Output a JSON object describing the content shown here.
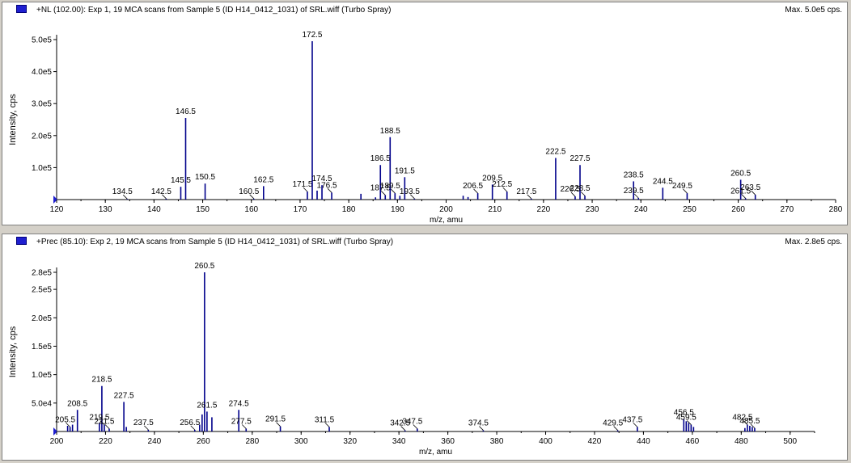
{
  "chart_data": [
    {
      "type": "bar",
      "title": "+NL (102.00): Exp 1, 19 MCA scans from Sample 5 (ID H14_0412_1031) of SRL.wiff (Turbo Spray)",
      "max_label": "Max. 5.0e5 cps.",
      "xlabel": "m/z, amu",
      "ylabel": "Intensity, cps",
      "xlim": [
        120,
        280
      ],
      "ylim": [
        0,
        500000
      ],
      "x_ticks": [
        120,
        130,
        140,
        150,
        160,
        170,
        180,
        190,
        200,
        210,
        220,
        230,
        240,
        250,
        260,
        270,
        280
      ],
      "y_ticks": [
        {
          "value": 100000,
          "label": "1.0e5"
        },
        {
          "value": 200000,
          "label": "2.0e5"
        },
        {
          "value": 300000,
          "label": "3.0e5"
        },
        {
          "value": 400000,
          "label": "4.0e5"
        },
        {
          "value": 500000,
          "label": "5.0e5"
        }
      ],
      "peaks": [
        {
          "x": 134.5,
          "y": 2000,
          "label": "134.5"
        },
        {
          "x": 142.5,
          "y": 3000,
          "label": "142.5"
        },
        {
          "x": 145.5,
          "y": 40000,
          "label": "145.5"
        },
        {
          "x": 146.5,
          "y": 255000,
          "label": "146.5"
        },
        {
          "x": 150.5,
          "y": 50000,
          "label": "150.5"
        },
        {
          "x": 160.5,
          "y": 3000,
          "label": "160.5"
        },
        {
          "x": 162.5,
          "y": 42000,
          "label": "162.5"
        },
        {
          "x": 171.5,
          "y": 25000,
          "label": "171.5"
        },
        {
          "x": 172.5,
          "y": 495000,
          "label": "172.5"
        },
        {
          "x": 173.5,
          "y": 28000,
          "label": ""
        },
        {
          "x": 174.5,
          "y": 45000,
          "label": "174.5"
        },
        {
          "x": 176.5,
          "y": 22000,
          "label": "176.5"
        },
        {
          "x": 182.5,
          "y": 18000,
          "label": ""
        },
        {
          "x": 185.5,
          "y": 7000,
          "label": ""
        },
        {
          "x": 186.5,
          "y": 108000,
          "label": "186.5"
        },
        {
          "x": 187.5,
          "y": 14000,
          "label": "187.5"
        },
        {
          "x": 188.5,
          "y": 195000,
          "label": "188.5"
        },
        {
          "x": 189.5,
          "y": 20000,
          "label": "189.5"
        },
        {
          "x": 190.5,
          "y": 12000,
          "label": ""
        },
        {
          "x": 191.5,
          "y": 70000,
          "label": "191.5"
        },
        {
          "x": 193.5,
          "y": 3000,
          "label": "193.5"
        },
        {
          "x": 203.5,
          "y": 12000,
          "label": ""
        },
        {
          "x": 204.5,
          "y": 8000,
          "label": ""
        },
        {
          "x": 206.5,
          "y": 20000,
          "label": "206.5"
        },
        {
          "x": 209.5,
          "y": 47000,
          "label": "209.5"
        },
        {
          "x": 212.5,
          "y": 25000,
          "label": "212.5"
        },
        {
          "x": 217.5,
          "y": 3000,
          "label": "217.5"
        },
        {
          "x": 222.5,
          "y": 130000,
          "label": "222.5"
        },
        {
          "x": 226.5,
          "y": 10000,
          "label": "226.5"
        },
        {
          "x": 227.5,
          "y": 108000,
          "label": "227.5"
        },
        {
          "x": 228.5,
          "y": 12000,
          "label": "228.5"
        },
        {
          "x": 238.5,
          "y": 57000,
          "label": "238.5"
        },
        {
          "x": 239.5,
          "y": 5000,
          "label": "239.5"
        },
        {
          "x": 244.5,
          "y": 37000,
          "label": "244.5"
        },
        {
          "x": 249.5,
          "y": 20000,
          "label": "249.5"
        },
        {
          "x": 260.5,
          "y": 62000,
          "label": "260.5"
        },
        {
          "x": 261.5,
          "y": 4000,
          "label": "261.5"
        },
        {
          "x": 263.5,
          "y": 15000,
          "label": "263.5"
        }
      ]
    },
    {
      "type": "bar",
      "title": "+Prec (85.10): Exp 2, 19 MCA scans from Sample 5 (ID H14_0412_1031) of SRL.wiff (Turbo Spray)",
      "max_label": "Max. 2.8e5 cps.",
      "xlabel": "m/z, amu",
      "ylabel": "Intensity, cps",
      "xlim": [
        200,
        510
      ],
      "ylim": [
        0,
        280000
      ],
      "x_ticks": [
        200,
        220,
        240,
        260,
        280,
        300,
        320,
        340,
        360,
        380,
        400,
        420,
        440,
        460,
        480,
        500
      ],
      "y_ticks": [
        {
          "value": 50000,
          "label": "5.0e4"
        },
        {
          "value": 100000,
          "label": "1.0e5"
        },
        {
          "value": 150000,
          "label": "1.5e5"
        },
        {
          "value": 200000,
          "label": "2.0e5"
        },
        {
          "value": 250000,
          "label": "2.5e5"
        },
        {
          "value": 280000,
          "label": "2.8e5"
        }
      ],
      "peaks": [
        {
          "x": 204.5,
          "y": 10000,
          "label": ""
        },
        {
          "x": 205.5,
          "y": 8000,
          "label": "205.5"
        },
        {
          "x": 206.5,
          "y": 12000,
          "label": ""
        },
        {
          "x": 208.5,
          "y": 38000,
          "label": "208.5"
        },
        {
          "x": 217.5,
          "y": 15000,
          "label": ""
        },
        {
          "x": 218.5,
          "y": 80000,
          "label": "218.5"
        },
        {
          "x": 219.5,
          "y": 12000,
          "label": "219.5"
        },
        {
          "x": 221.5,
          "y": 5000,
          "label": "221.5"
        },
        {
          "x": 227.5,
          "y": 52000,
          "label": "227.5"
        },
        {
          "x": 228.5,
          "y": 8000,
          "label": ""
        },
        {
          "x": 237.5,
          "y": 3000,
          "label": "237.5"
        },
        {
          "x": 256.5,
          "y": 3000,
          "label": "256.5"
        },
        {
          "x": 258.5,
          "y": 12000,
          "label": ""
        },
        {
          "x": 259.5,
          "y": 30000,
          "label": ""
        },
        {
          "x": 260.5,
          "y": 280000,
          "label": "260.5"
        },
        {
          "x": 261.5,
          "y": 35000,
          "label": "261.5"
        },
        {
          "x": 263.5,
          "y": 25000,
          "label": ""
        },
        {
          "x": 274.5,
          "y": 38000,
          "label": "274.5"
        },
        {
          "x": 277.5,
          "y": 5000,
          "label": "277.5"
        },
        {
          "x": 291.5,
          "y": 9000,
          "label": "291.5"
        },
        {
          "x": 311.5,
          "y": 8000,
          "label": "311.5"
        },
        {
          "x": 342.5,
          "y": 2000,
          "label": "342.5"
        },
        {
          "x": 347.5,
          "y": 5000,
          "label": "347.5"
        },
        {
          "x": 374.5,
          "y": 2000,
          "label": "374.5"
        },
        {
          "x": 429.5,
          "y": 2000,
          "label": "429.5"
        },
        {
          "x": 437.5,
          "y": 8000,
          "label": "437.5"
        },
        {
          "x": 456.5,
          "y": 22000,
          "label": "456.5"
        },
        {
          "x": 457.5,
          "y": 18000,
          "label": ""
        },
        {
          "x": 458.5,
          "y": 15000,
          "label": ""
        },
        {
          "x": 459.5,
          "y": 12000,
          "label": "459.5"
        },
        {
          "x": 460.5,
          "y": 8000,
          "label": ""
        },
        {
          "x": 481.5,
          "y": 6000,
          "label": ""
        },
        {
          "x": 482.5,
          "y": 12000,
          "label": "482.5"
        },
        {
          "x": 483.5,
          "y": 10000,
          "label": ""
        },
        {
          "x": 484.5,
          "y": 8000,
          "label": ""
        },
        {
          "x": 485.5,
          "y": 6000,
          "label": "485.5"
        }
      ]
    }
  ],
  "colors": {
    "peak": "#00008b",
    "axis": "#000000",
    "marker": "#1f1fd0",
    "panel_bg": "#ffffff",
    "window_bg": "#d4d0c8"
  }
}
